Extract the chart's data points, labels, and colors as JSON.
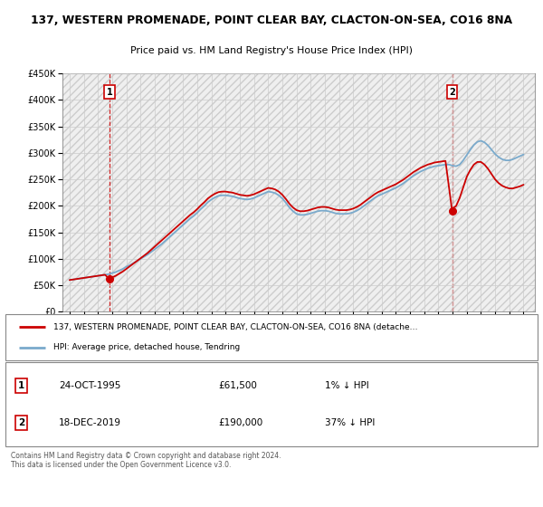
{
  "title": "137, WESTERN PROMENADE, POINT CLEAR BAY, CLACTON-ON-SEA, CO16 8NA",
  "subtitle": "Price paid vs. HM Land Registry's House Price Index (HPI)",
  "legend_line1": "137, WESTERN PROMENADE, POINT CLEAR BAY, CLACTON-ON-SEA, CO16 8NA (detache…",
  "legend_line2": "HPI: Average price, detached house, Tendring",
  "annotation1_label": "1",
  "annotation1_date": "24-OCT-1995",
  "annotation1_price": "£61,500",
  "annotation1_hpi": "1% ↓ HPI",
  "annotation2_label": "2",
  "annotation2_date": "18-DEC-2019",
  "annotation2_price": "£190,000",
  "annotation2_hpi": "37% ↓ HPI",
  "footer": "Contains HM Land Registry data © Crown copyright and database right 2024.\nThis data is licensed under the Open Government Licence v3.0.",
  "price_color": "#cc0000",
  "hpi_color": "#7aaacc",
  "annotation_box_color": "#cc0000",
  "ylim": [
    0,
    450000
  ],
  "yticks": [
    0,
    50000,
    100000,
    150000,
    200000,
    250000,
    300000,
    350000,
    400000,
    450000
  ],
  "xlim_start": 1992.5,
  "xlim_end": 2025.8,
  "sale1_x": 1995.82,
  "sale1_y": 61500,
  "sale2_x": 2019.97,
  "sale2_y": 190000,
  "hpi_x": [
    1993.0,
    1993.25,
    1993.5,
    1993.75,
    1994.0,
    1994.25,
    1994.5,
    1994.75,
    1995.0,
    1995.25,
    1995.5,
    1995.75,
    1996.0,
    1996.25,
    1996.5,
    1996.75,
    1997.0,
    1997.25,
    1997.5,
    1997.75,
    1998.0,
    1998.25,
    1998.5,
    1998.75,
    1999.0,
    1999.25,
    1999.5,
    1999.75,
    2000.0,
    2000.25,
    2000.5,
    2000.75,
    2001.0,
    2001.25,
    2001.5,
    2001.75,
    2002.0,
    2002.25,
    2002.5,
    2002.75,
    2003.0,
    2003.25,
    2003.5,
    2003.75,
    2004.0,
    2004.25,
    2004.5,
    2004.75,
    2005.0,
    2005.25,
    2005.5,
    2005.75,
    2006.0,
    2006.25,
    2006.5,
    2006.75,
    2007.0,
    2007.25,
    2007.5,
    2007.75,
    2008.0,
    2008.25,
    2008.5,
    2008.75,
    2009.0,
    2009.25,
    2009.5,
    2009.75,
    2010.0,
    2010.25,
    2010.5,
    2010.75,
    2011.0,
    2011.25,
    2011.5,
    2011.75,
    2012.0,
    2012.25,
    2012.5,
    2012.75,
    2013.0,
    2013.25,
    2013.5,
    2013.75,
    2014.0,
    2014.25,
    2014.5,
    2014.75,
    2015.0,
    2015.25,
    2015.5,
    2015.75,
    2016.0,
    2016.25,
    2016.5,
    2016.75,
    2017.0,
    2017.25,
    2017.5,
    2017.75,
    2018.0,
    2018.25,
    2018.5,
    2018.75,
    2019.0,
    2019.25,
    2019.5,
    2019.75,
    2020.0,
    2020.25,
    2020.5,
    2020.75,
    2021.0,
    2021.25,
    2021.5,
    2021.75,
    2022.0,
    2022.25,
    2022.5,
    2022.75,
    2023.0,
    2023.25,
    2023.5,
    2023.75,
    2024.0,
    2024.25,
    2024.5,
    2024.75,
    2025.0
  ],
  "hpi_y": [
    60000,
    61000,
    62000,
    63000,
    64000,
    65000,
    66000,
    67000,
    68000,
    69000,
    70000,
    71000,
    73000,
    75000,
    78000,
    81000,
    85000,
    88000,
    92000,
    96000,
    100000,
    104000,
    108000,
    113000,
    118000,
    123000,
    128000,
    134000,
    140000,
    146000,
    152000,
    158000,
    164000,
    170000,
    176000,
    181000,
    187000,
    194000,
    200000,
    207000,
    212000,
    216000,
    219000,
    220000,
    220000,
    219000,
    218000,
    216000,
    214000,
    213000,
    212000,
    213000,
    215000,
    218000,
    221000,
    224000,
    227000,
    226000,
    224000,
    220000,
    214000,
    206000,
    197000,
    190000,
    185000,
    183000,
    183000,
    184000,
    186000,
    188000,
    190000,
    191000,
    191000,
    190000,
    188000,
    186000,
    185000,
    185000,
    185000,
    186000,
    188000,
    191000,
    195000,
    200000,
    205000,
    210000,
    215000,
    219000,
    222000,
    225000,
    228000,
    231000,
    234000,
    238000,
    242000,
    247000,
    252000,
    257000,
    261000,
    265000,
    268000,
    271000,
    273000,
    275000,
    276000,
    277000,
    278000,
    278000,
    276000,
    275000,
    278000,
    286000,
    296000,
    306000,
    315000,
    321000,
    323000,
    320000,
    314000,
    306000,
    298000,
    292000,
    288000,
    286000,
    286000,
    288000,
    291000,
    294000,
    297000
  ],
  "price_x": [
    1993.0,
    1993.25,
    1993.5,
    1993.75,
    1994.0,
    1994.25,
    1994.5,
    1994.75,
    1995.0,
    1995.25,
    1995.5,
    1995.82,
    1996.0,
    1996.25,
    1996.5,
    1996.75,
    1997.0,
    1997.25,
    1997.5,
    1997.75,
    1998.0,
    1998.25,
    1998.5,
    1998.75,
    1999.0,
    1999.25,
    1999.5,
    1999.75,
    2000.0,
    2000.25,
    2000.5,
    2000.75,
    2001.0,
    2001.25,
    2001.5,
    2001.75,
    2002.0,
    2002.25,
    2002.5,
    2002.75,
    2003.0,
    2003.25,
    2003.5,
    2003.75,
    2004.0,
    2004.25,
    2004.5,
    2004.75,
    2005.0,
    2005.25,
    2005.5,
    2005.75,
    2006.0,
    2006.25,
    2006.5,
    2006.75,
    2007.0,
    2007.25,
    2007.5,
    2007.75,
    2008.0,
    2008.25,
    2008.5,
    2008.75,
    2009.0,
    2009.25,
    2009.5,
    2009.75,
    2010.0,
    2010.25,
    2010.5,
    2010.75,
    2011.0,
    2011.25,
    2011.5,
    2011.75,
    2012.0,
    2012.25,
    2012.5,
    2012.75,
    2013.0,
    2013.25,
    2013.5,
    2013.75,
    2014.0,
    2014.25,
    2014.5,
    2014.75,
    2015.0,
    2015.25,
    2015.5,
    2015.75,
    2016.0,
    2016.25,
    2016.5,
    2016.75,
    2017.0,
    2017.25,
    2017.5,
    2017.75,
    2018.0,
    2018.25,
    2018.5,
    2018.75,
    2019.0,
    2019.25,
    2019.5,
    2019.97,
    2020.0,
    2020.25,
    2020.5,
    2020.75,
    2021.0,
    2021.25,
    2021.5,
    2021.75,
    2022.0,
    2022.25,
    2022.5,
    2022.75,
    2023.0,
    2023.25,
    2023.5,
    2023.75,
    2024.0,
    2024.25,
    2024.5,
    2024.75,
    2025.0
  ],
  "price_y": [
    60000,
    61000,
    62000,
    63000,
    64000,
    65000,
    66000,
    67000,
    68000,
    69000,
    70000,
    61500,
    65000,
    68000,
    72000,
    76000,
    81000,
    86000,
    91000,
    96000,
    101000,
    106000,
    111000,
    117000,
    123000,
    129000,
    135000,
    141000,
    147000,
    153000,
    159000,
    165000,
    171000,
    177000,
    183000,
    188000,
    194000,
    201000,
    207000,
    214000,
    219000,
    223000,
    226000,
    227000,
    227000,
    226000,
    225000,
    223000,
    221000,
    220000,
    219000,
    220000,
    222000,
    225000,
    228000,
    231000,
    234000,
    233000,
    231000,
    227000,
    221000,
    213000,
    204000,
    197000,
    192000,
    190000,
    190000,
    191000,
    193000,
    195000,
    197000,
    198000,
    198000,
    197000,
    195000,
    193000,
    192000,
    192000,
    192000,
    193000,
    195000,
    198000,
    202000,
    207000,
    212000,
    217000,
    222000,
    226000,
    229000,
    232000,
    235000,
    238000,
    241000,
    245000,
    249000,
    254000,
    259000,
    264000,
    268000,
    272000,
    275000,
    278000,
    280000,
    282000,
    283000,
    284000,
    285000,
    190000,
    195000,
    200000,
    215000,
    235000,
    255000,
    268000,
    278000,
    283000,
    283000,
    278000,
    270000,
    260000,
    250000,
    243000,
    238000,
    235000,
    233000,
    233000,
    235000,
    237000,
    240000
  ]
}
